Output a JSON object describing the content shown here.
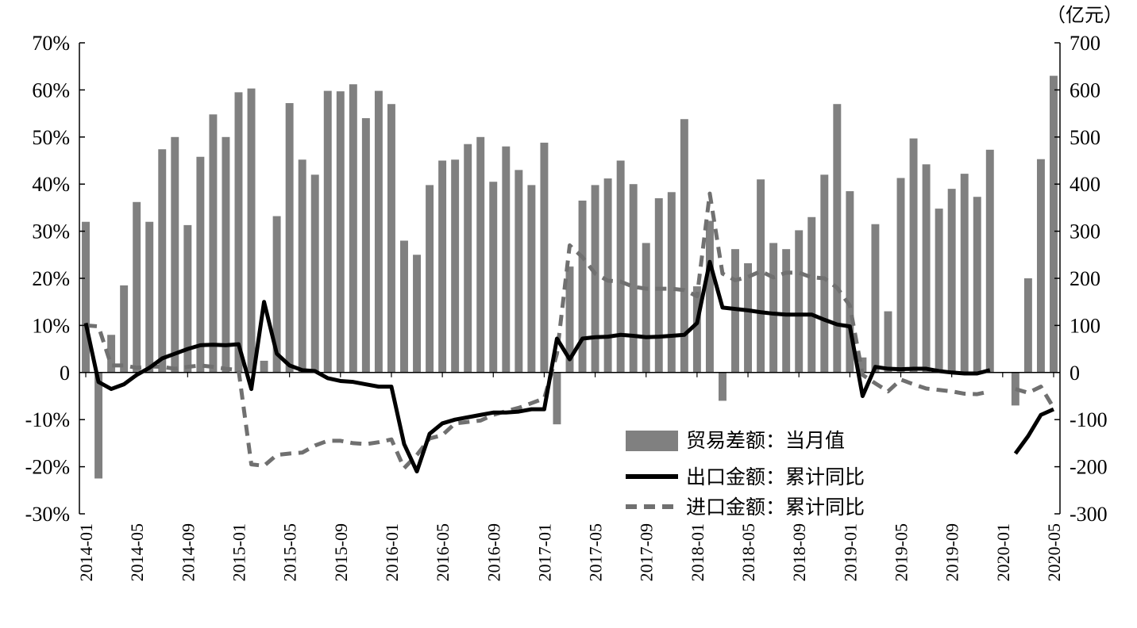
{
  "chart_data": {
    "type": "bar+line",
    "x": [
      "2014-01",
      "2014-02",
      "2014-03",
      "2014-04",
      "2014-05",
      "2014-06",
      "2014-07",
      "2014-08",
      "2014-09",
      "2014-10",
      "2014-11",
      "2014-12",
      "2015-01",
      "2015-02",
      "2015-03",
      "2015-04",
      "2015-05",
      "2015-06",
      "2015-07",
      "2015-08",
      "2015-09",
      "2015-10",
      "2015-11",
      "2015-12",
      "2016-01",
      "2016-02",
      "2016-03",
      "2016-04",
      "2016-05",
      "2016-06",
      "2016-07",
      "2016-08",
      "2016-09",
      "2016-10",
      "2016-11",
      "2016-12",
      "2017-01",
      "2017-02",
      "2017-03",
      "2017-04",
      "2017-05",
      "2017-06",
      "2017-07",
      "2017-08",
      "2017-09",
      "2017-10",
      "2017-11",
      "2017-12",
      "2018-01",
      "2018-02",
      "2018-03",
      "2018-04",
      "2018-05",
      "2018-06",
      "2018-07",
      "2018-08",
      "2018-09",
      "2018-10",
      "2018-11",
      "2018-12",
      "2019-01",
      "2019-02",
      "2019-03",
      "2019-04",
      "2019-05",
      "2019-06",
      "2019-07",
      "2019-08",
      "2019-09",
      "2019-10",
      "2019-11",
      "2019-12",
      "2020-01",
      "2020-02",
      "2020-03",
      "2020-04",
      "2020-05"
    ],
    "x_tick_labels": [
      "2014-01",
      "2014-05",
      "2014-09",
      "2015-01",
      "2015-05",
      "2015-09",
      "2016-01",
      "2016-05",
      "2016-09",
      "2017-01",
      "2017-05",
      "2017-09",
      "2018-01",
      "2018-05",
      "2018-09",
      "2019-01",
      "2019-05",
      "2019-09",
      "2020-01",
      "2020-05"
    ],
    "series": [
      {
        "name": "贸易差额：当月值",
        "type": "bar",
        "axis": "right",
        "color": "#808080",
        "values": [
          320,
          -225,
          80,
          185,
          362,
          320,
          474,
          500,
          313,
          458,
          548,
          500,
          595,
          603,
          25,
          332,
          572,
          452,
          420,
          598,
          597,
          612,
          540,
          598,
          570,
          280,
          250,
          398,
          450,
          452,
          485,
          500,
          405,
          480,
          430,
          398,
          488,
          -110,
          225,
          365,
          398,
          412,
          450,
          400,
          275,
          370,
          383,
          538,
          183,
          322,
          -60,
          262,
          232,
          410,
          275,
          262,
          302,
          330,
          420,
          570,
          385,
          32,
          315,
          130,
          413,
          497,
          442,
          348,
          390,
          422,
          373,
          473,
          null,
          -70,
          200,
          453,
          630
        ]
      },
      {
        "name": "出口金额：累计同比",
        "type": "line",
        "axis": "left",
        "color": "#000000",
        "style": "solid",
        "values": [
          10.5,
          -2,
          -3.5,
          -2.5,
          -0.5,
          1,
          3,
          4,
          5,
          5.8,
          5.9,
          5.8,
          6,
          -3.5,
          15,
          4,
          1.5,
          0.5,
          0.3,
          -1.2,
          -1.8,
          -2,
          -2.5,
          -3,
          -3,
          -15.2,
          -21,
          -13,
          -10.8,
          -10,
          -9.5,
          -9,
          -8.5,
          -8.5,
          -8.3,
          -7.8,
          -7.8,
          7.2,
          2.8,
          7.2,
          7.5,
          7.6,
          8,
          7.8,
          7.5,
          7.6,
          7.8,
          8,
          10.5,
          23.5,
          13.8,
          13.5,
          13.2,
          12.8,
          12.5,
          12.3,
          12.3,
          12.3,
          11.2,
          10.2,
          9.8,
          -5,
          1.2,
          0.8,
          0.7,
          0.8,
          0.8,
          0.3,
          0,
          -0.2,
          -0.2,
          0.5,
          null,
          -17.2,
          -13.5,
          -9,
          -7.8
        ]
      },
      {
        "name": "进口金额：累计同比",
        "type": "line",
        "axis": "left",
        "color": "#707070",
        "style": "dashed",
        "values": [
          10,
          9.8,
          1.5,
          1.5,
          1,
          1.3,
          1.2,
          0.8,
          1.2,
          1.5,
          1.2,
          0.8,
          0.5,
          -19.5,
          -19.8,
          -17.5,
          -17.2,
          -17,
          -15.5,
          -14.5,
          -14.5,
          -15,
          -15.2,
          -14.8,
          -14.2,
          -20.3,
          -17.5,
          -14,
          -13.3,
          -10.8,
          -10.5,
          -10.2,
          -9,
          -8.2,
          -7.5,
          -6.5,
          -5.5,
          4,
          27,
          24.5,
          21,
          19.5,
          19.3,
          18.2,
          17.8,
          17.8,
          17.8,
          17.5,
          16.2,
          38,
          21,
          19.6,
          20.3,
          21.5,
          20.2,
          21.2,
          21.2,
          20.2,
          20,
          18,
          14.2,
          -0.5,
          -2.3,
          -4,
          -1.5,
          -2.5,
          -3.4,
          -3.7,
          -4,
          -4.5,
          -4.6,
          -4,
          null,
          -3.5,
          -4.3,
          -3,
          -7.5
        ]
      }
    ],
    "left_axis": {
      "min": -30,
      "max": 70,
      "step": 10,
      "tick_labels": [
        "70%",
        "60%",
        "50%",
        "40%",
        "30%",
        "20%",
        "10%",
        "0",
        "-10%",
        "-20%",
        "-30%"
      ]
    },
    "right_axis": {
      "min": -300,
      "max": 700,
      "step": 100,
      "unit": "（亿元）",
      "tick_labels": [
        "700",
        "600",
        "500",
        "400",
        "300",
        "200",
        "100",
        "0",
        "-100",
        "-200",
        "-300"
      ]
    },
    "legend_position": "bottom-right",
    "grid": false
  }
}
